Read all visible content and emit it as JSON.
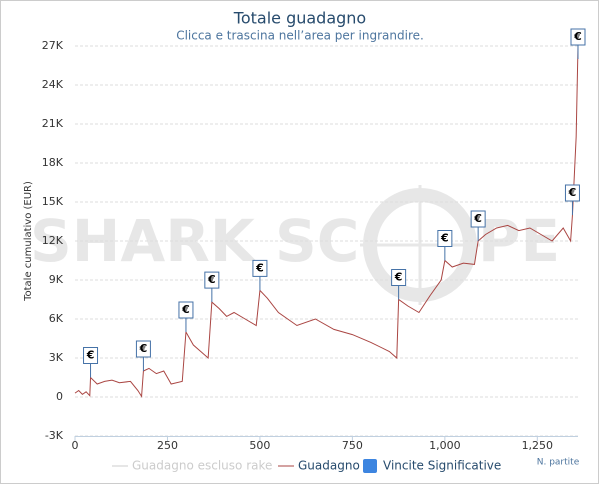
{
  "chart_data": {
    "type": "line",
    "title": "Totale guadagno",
    "subtitle": "Clicca e trascina nell’area per ingrandire.",
    "y_axis_label": "Totale cumulativo (EUR)",
    "x_axis_label": "N. partite",
    "watermark": [
      "SHARK SC",
      "PE"
    ],
    "xlim": [
      0,
      1360
    ],
    "xticks": [
      0,
      250,
      500,
      750,
      {
        "value": 1000,
        "label": "1,000"
      },
      {
        "value": 1250,
        "label": "1,250"
      }
    ],
    "ylim": [
      -3000,
      27000
    ],
    "yticks": [
      {
        "value": -3000,
        "label": "-3K"
      },
      0,
      {
        "value": 3000,
        "label": "3K"
      },
      {
        "value": 6000,
        "label": "6K"
      },
      {
        "value": 9000,
        "label": "9K"
      },
      {
        "value": 12000,
        "label": "12K"
      },
      {
        "value": 15000,
        "label": "15K"
      },
      {
        "value": 18000,
        "label": "18K"
      },
      {
        "value": 21000,
        "label": "21K"
      },
      {
        "value": 24000,
        "label": "24K"
      },
      {
        "value": 27000,
        "label": "27K"
      }
    ],
    "grid": true,
    "legend": "bottom",
    "series": [
      {
        "name": "Guadagno escluso rake",
        "color": "#cccccc",
        "visible": false
      },
      {
        "name": "Guadagno",
        "color": "#aa4643",
        "x": [
          0,
          10,
          20,
          30,
          40,
          42,
          60,
          80,
          100,
          120,
          150,
          170,
          180,
          185,
          200,
          220,
          240,
          260,
          290,
          300,
          320,
          340,
          360,
          370,
          390,
          410,
          430,
          460,
          490,
          500,
          520,
          550,
          600,
          650,
          700,
          750,
          800,
          850,
          870,
          875,
          900,
          930,
          960,
          990,
          1000,
          1020,
          1050,
          1080,
          1090,
          1110,
          1140,
          1170,
          1200,
          1230,
          1260,
          1290,
          1320,
          1340,
          1345,
          1355,
          1360
        ],
        "values": [
          300,
          500,
          200,
          400,
          100,
          1500,
          1000,
          1200,
          1300,
          1100,
          1200,
          500,
          50,
          2000,
          2200,
          1800,
          2000,
          1000,
          1200,
          5000,
          4000,
          3500,
          3000,
          7300,
          6800,
          6200,
          6500,
          6000,
          5500,
          8200,
          7600,
          6500,
          5500,
          6000,
          5200,
          4800,
          4200,
          3500,
          3000,
          7500,
          7000,
          6500,
          7800,
          9000,
          10500,
          10000,
          10300,
          10200,
          12000,
          12500,
          13000,
          13200,
          12800,
          13000,
          12500,
          12000,
          13000,
          12000,
          14000,
          20000,
          27000
        ]
      },
      {
        "name": "Vincite Significative",
        "color": "#4572a7",
        "legend_color": "#3d85e0",
        "type": "flags",
        "label": "€",
        "x": [
          42,
          185,
          300,
          370,
          500,
          875,
          1000,
          1090,
          1345,
          1360
        ],
        "values": [
          1500,
          2000,
          5000,
          7300,
          8200,
          7500,
          10500,
          12000,
          14000,
          26000
        ]
      }
    ]
  }
}
